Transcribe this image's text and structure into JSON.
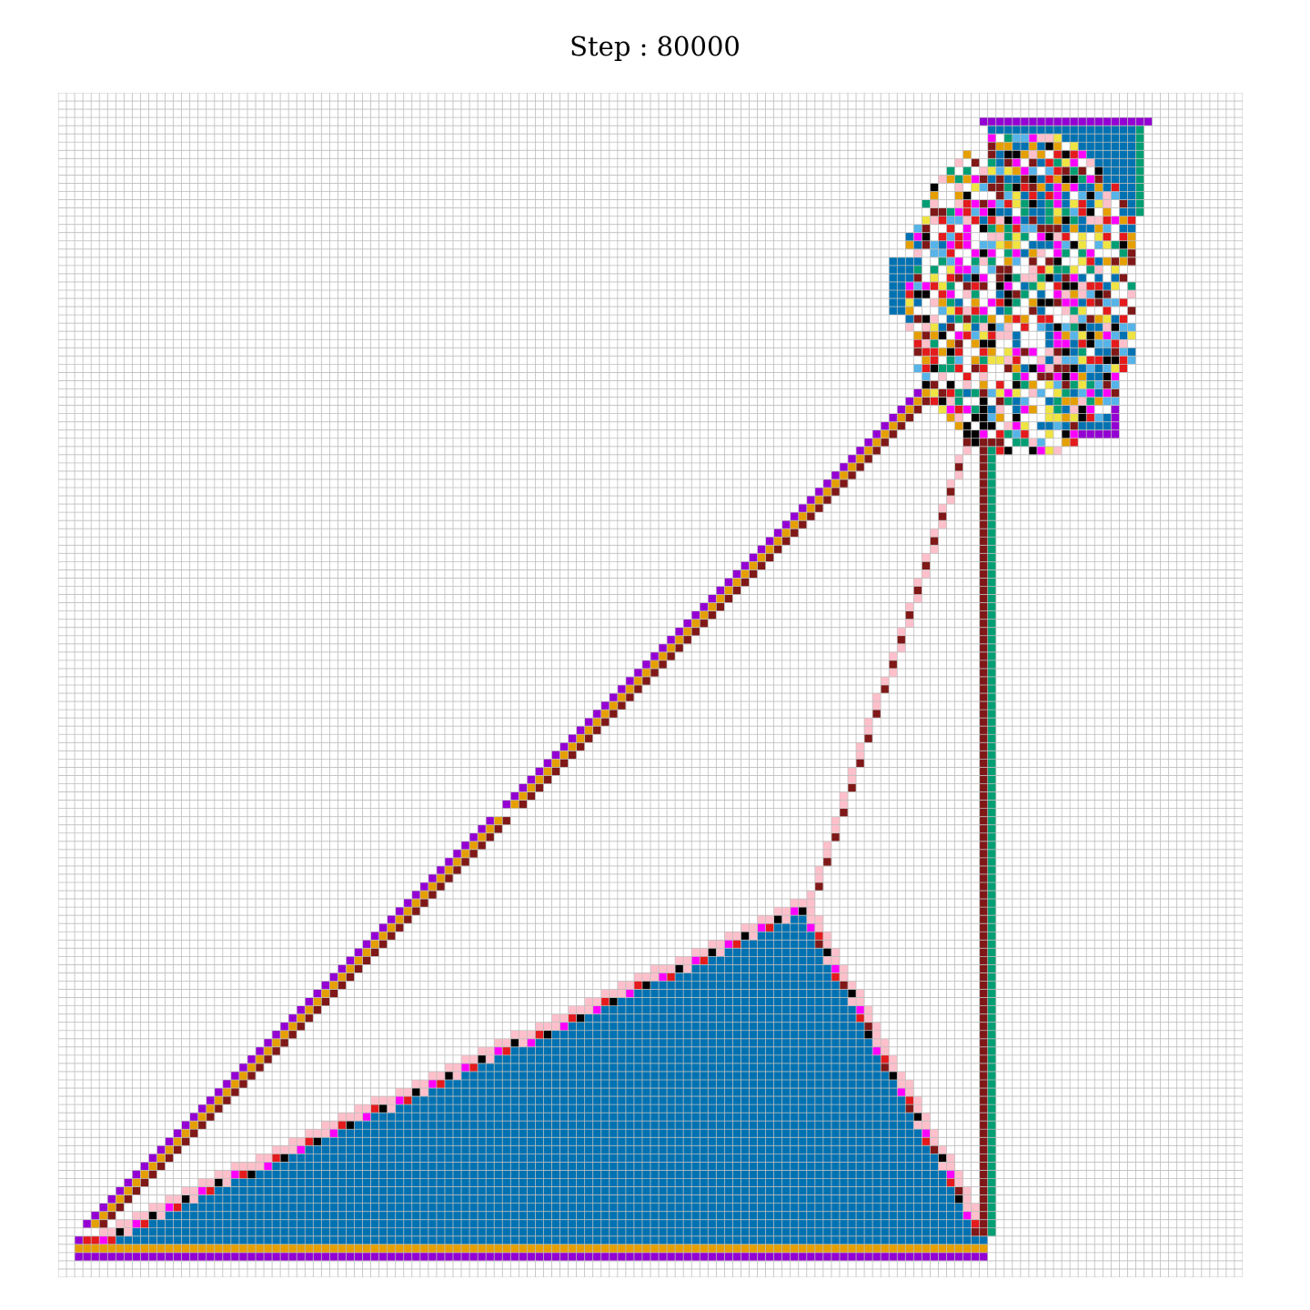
{
  "title": "Step : 80000",
  "grid": {
    "cells": 144,
    "line_color": "#bdbdbd",
    "background": "#ffffff"
  },
  "palette": {
    "blue": "#0072b2",
    "purple": "#9400d3",
    "orange": "#e69f00",
    "maroon": "#801818",
    "pink": "#ffc0cb",
    "magenta": "#ff00ff",
    "red": "#e41a1c",
    "black": "#000000",
    "green": "#009e73",
    "yellow": "#f0e442",
    "skyblue": "#56b4e9"
  },
  "region_names": [
    "ant-trail-highway",
    "triangle-fill",
    "chaotic-cluster",
    "top-box",
    "right-box",
    "vertical-highway",
    "pink-highway"
  ]
}
